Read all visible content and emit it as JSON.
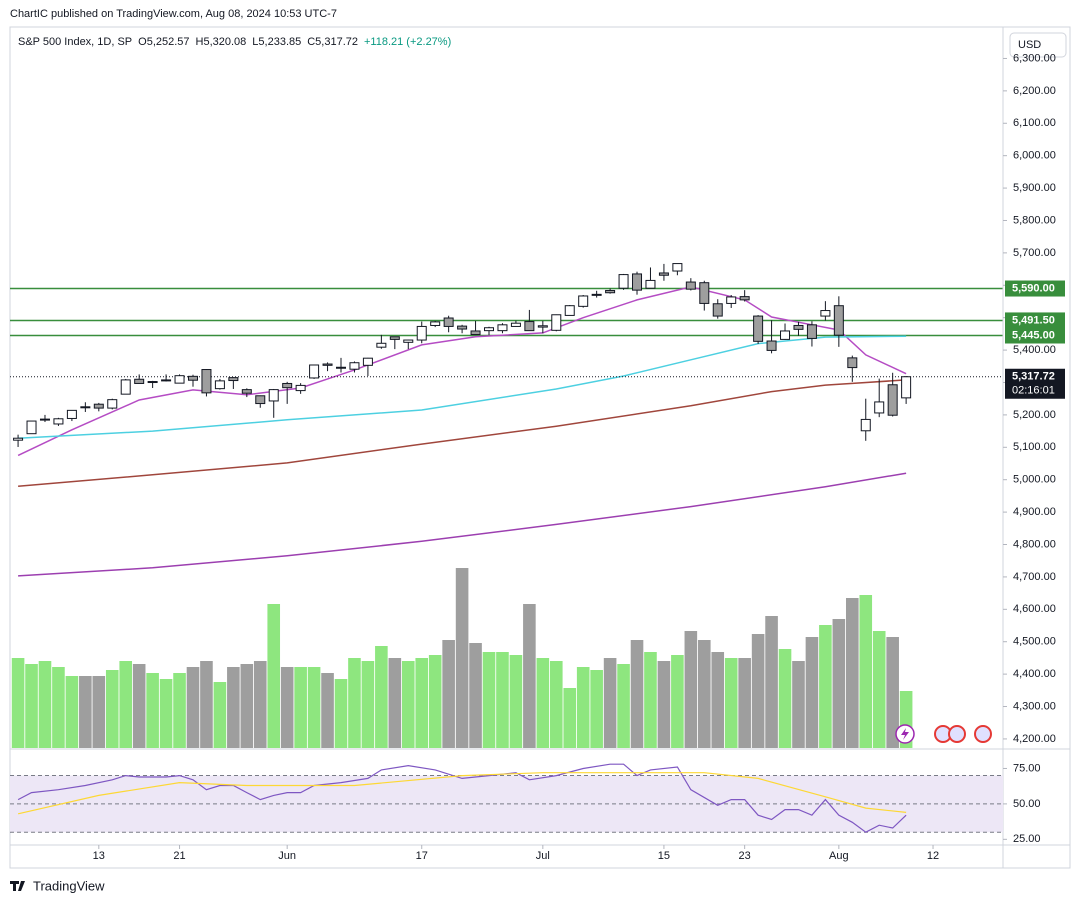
{
  "header": {
    "publisher": "ChartIC published on TradingView.com, Aug 08, 2024 10:53 UTC-7"
  },
  "footer": {
    "brand": "TradingView"
  },
  "chart_data": {
    "type": "candlestick",
    "title": "S&P 500 Index, 1D, SP",
    "legend_values": [
      "O5,252.57",
      "H5,320.08",
      "L5,233.85",
      "C5,317.72",
      "+118.21 (+2.27%)"
    ],
    "currency": "USD",
    "open": [
      5122,
      5142,
      5187,
      5172,
      5189,
      5225,
      5233,
      5221,
      5264,
      5310,
      5303,
      5305,
      5298,
      5319,
      5340,
      5281,
      5315,
      5278,
      5259,
      5243,
      5297,
      5275,
      5314,
      5357,
      5344,
      5341,
      5353,
      5409,
      5441,
      5424,
      5431,
      5476,
      5499,
      5474,
      5459,
      5460,
      5460,
      5473,
      5488,
      5471,
      5461,
      5507,
      5535,
      5572,
      5584,
      5591,
      5635,
      5591,
      5638,
      5644,
      5610,
      5608,
      5543,
      5544,
      5565,
      5505,
      5428,
      5433,
      5476,
      5478,
      5505,
      5537,
      5376,
      5151,
      5206,
      5293,
      5252.57
    ],
    "high": [
      5139,
      5181,
      5200,
      5191,
      5215,
      5239,
      5237,
      5250,
      5311,
      5325,
      5305,
      5325,
      5325,
      5324,
      5341,
      5311,
      5316,
      5282,
      5260,
      5280,
      5302,
      5298,
      5354,
      5362,
      5376,
      5365,
      5376,
      5447,
      5441,
      5432,
      5488,
      5490,
      5506,
      5478,
      5490,
      5472,
      5483,
      5491,
      5524,
      5490,
      5510,
      5539,
      5570,
      5583,
      5590,
      5635,
      5642,
      5655,
      5666,
      5667,
      5622,
      5614,
      5557,
      5570,
      5585,
      5508,
      5492,
      5482,
      5487,
      5489,
      5551,
      5566,
      5383,
      5250,
      5312,
      5330,
      5320.08
    ],
    "low": [
      5101,
      5142,
      5178,
      5166,
      5181,
      5209,
      5211,
      5217,
      5263,
      5297,
      5283,
      5303,
      5297,
      5287,
      5257,
      5278,
      5280,
      5255,
      5222,
      5191,
      5234,
      5265,
      5311,
      5335,
      5331,
      5331,
      5320,
      5404,
      5403,
      5403,
      5421,
      5471,
      5455,
      5452,
      5448,
      5446,
      5452,
      5473,
      5460,
      5452,
      5458,
      5507,
      5531,
      5562,
      5574,
      5586,
      5571,
      5590,
      5614,
      5631,
      5584,
      5522,
      5497,
      5530,
      5550,
      5419,
      5390,
      5432,
      5444,
      5411,
      5491,
      5410,
      5302,
      5120,
      5193,
      5195,
      5233.85
    ],
    "close": [
      5128,
      5181,
      5187,
      5188,
      5214,
      5223,
      5221,
      5247,
      5308,
      5297,
      5303,
      5308,
      5321,
      5307,
      5268,
      5305,
      5306,
      5267,
      5235,
      5278,
      5284,
      5291,
      5354,
      5353,
      5347,
      5361,
      5375,
      5421,
      5433,
      5431,
      5473,
      5487,
      5473,
      5465,
      5448,
      5469,
      5478,
      5483,
      5460,
      5475,
      5509,
      5537,
      5567,
      5572,
      5577,
      5633,
      5585,
      5615,
      5631,
      5667,
      5588,
      5544,
      5505,
      5564,
      5555,
      5427,
      5399,
      5459,
      5464,
      5436,
      5522,
      5446,
      5346,
      5186,
      5240,
      5199,
      5317.72
    ],
    "up_color": "#ffffff",
    "down_color": "#9e9e9e",
    "xlim": [
      -0.6,
      73.2
    ],
    "xticks": [
      {
        "value": 6,
        "label": "13"
      },
      {
        "value": 12,
        "label": "21"
      },
      {
        "value": 20,
        "label": "Jun"
      },
      {
        "value": 30,
        "label": "17"
      },
      {
        "value": 39,
        "label": "Jul"
      },
      {
        "value": 48,
        "label": "15"
      },
      {
        "value": 54,
        "label": "23"
      },
      {
        "value": 61,
        "label": "Aug"
      },
      {
        "value": 68,
        "label": "12"
      }
    ],
    "ylim": [
      4172,
      6394
    ],
    "yticks": [
      {
        "value": 4200,
        "label": "4,200.00"
      },
      {
        "value": 4300,
        "label": "4,300.00"
      },
      {
        "value": 4400,
        "label": "4,400.00"
      },
      {
        "value": 4500,
        "label": "4,500.00"
      },
      {
        "value": 4600,
        "label": "4,600.00"
      },
      {
        "value": 4700,
        "label": "4,700.00"
      },
      {
        "value": 4800,
        "label": "4,800.00"
      },
      {
        "value": 4900,
        "label": "4,900.00"
      },
      {
        "value": 5000,
        "label": "5,000.00"
      },
      {
        "value": 5100,
        "label": "5,100.00"
      },
      {
        "value": 5200,
        "label": "5,200.00"
      },
      {
        "value": 5300,
        "label": "5,300.00"
      },
      {
        "value": 5400,
        "label": "5,400.00"
      },
      {
        "value": 5500,
        "label": "5,500.00"
      },
      {
        "value": 5600,
        "label": "5,600.00"
      },
      {
        "value": 5700,
        "label": "5,700.00"
      },
      {
        "value": 5800,
        "label": "5,800.00"
      },
      {
        "value": 5900,
        "label": "5,900.00"
      },
      {
        "value": 6000,
        "label": "6,000.00"
      },
      {
        "value": 6100,
        "label": "6,100.00"
      },
      {
        "value": 6200,
        "label": "6,200.00"
      },
      {
        "value": 6300,
        "label": "6,300.00"
      }
    ],
    "last_price": {
      "value": 5317.72,
      "label": "5,317.72",
      "countdown": "02:16:01"
    },
    "level_color": "#388e3c",
    "levels": [
      {
        "value": 5590,
        "label": "5,590.00"
      },
      {
        "value": 5491.5,
        "label": "5,491.50"
      },
      {
        "value": 5445,
        "label": "5,445.00"
      }
    ],
    "moving_averages": [
      {
        "color": "#b54cc4",
        "x": [
          0,
          4,
          9,
          13,
          17,
          21,
          25,
          30,
          34,
          39,
          42,
          46,
          50,
          54,
          56,
          59,
          61,
          63,
          66
        ],
        "values": [
          5075,
          5154,
          5246,
          5277,
          5262,
          5283,
          5339,
          5416,
          5441,
          5453,
          5500,
          5555,
          5595,
          5555,
          5502,
          5478,
          5462,
          5385,
          5327
        ]
      },
      {
        "color": "#4dd0e1",
        "x": [
          0,
          10,
          20,
          30,
          40,
          45,
          50,
          55,
          60,
          66
        ],
        "values": [
          5128,
          5150,
          5185,
          5215,
          5280,
          5320,
          5370,
          5420,
          5440,
          5443
        ]
      },
      {
        "color": "#a0463c",
        "x": [
          0,
          10,
          20,
          30,
          40,
          50,
          56,
          60,
          66
        ],
        "values": [
          4980,
          5015,
          5052,
          5110,
          5165,
          5228,
          5272,
          5292,
          5308
        ]
      },
      {
        "color": "#9c3fb0",
        "x": [
          0,
          10,
          20,
          30,
          40,
          50,
          60,
          66
        ],
        "values": [
          4703,
          4728,
          4765,
          4810,
          4862,
          4917,
          4978,
          5020
        ]
      }
    ],
    "volume": {
      "ylim": [
        0,
        24
      ],
      "up_color": "#8ee67f",
      "down_color": "#9e9e9e",
      "values": [
        3.0,
        2.8,
        2.9,
        2.7,
        2.4,
        2.4,
        2.4,
        2.6,
        2.9,
        2.8,
        2.5,
        2.3,
        2.5,
        2.7,
        2.9,
        2.2,
        2.7,
        2.8,
        2.9,
        4.8,
        2.7,
        2.7,
        2.7,
        2.5,
        2.3,
        3.0,
        2.9,
        3.4,
        3.0,
        2.9,
        3.0,
        3.1,
        3.6,
        6.0,
        3.5,
        3.2,
        3.2,
        3.1,
        4.8,
        3.0,
        2.9,
        2.0,
        2.7,
        2.6,
        3.0,
        2.8,
        3.6,
        3.2,
        2.9,
        3.1,
        3.9,
        3.6,
        3.2,
        3.0,
        3.0,
        3.8,
        4.4,
        3.3,
        2.9,
        3.7,
        4.1,
        4.3,
        5.0,
        5.1,
        3.9,
        3.7,
        1.9
      ]
    },
    "rsi": {
      "ylim": [
        21,
        84.5
      ],
      "yticks": [
        {
          "value": 75,
          "label": "75.00"
        },
        {
          "value": 50,
          "label": "50.00"
        },
        {
          "value": 25,
          "label": "25.00"
        }
      ],
      "levels": [
        70,
        50,
        30
      ],
      "band_color": "#ede7f6",
      "series": [
        {
          "color": "#7e57c2",
          "x": [
            0,
            1,
            3,
            5,
            7,
            8,
            9,
            11,
            12,
            13,
            14,
            15,
            16,
            17,
            18,
            19,
            20,
            21,
            22,
            24,
            26,
            27,
            29,
            31,
            33,
            35,
            37,
            38,
            40,
            42,
            44,
            45,
            46,
            47,
            49,
            50,
            52,
            53,
            54,
            55,
            56,
            57,
            58,
            59,
            60,
            61,
            62,
            63,
            64,
            65,
            66
          ],
          "values": [
            53,
            58,
            60,
            63,
            67,
            70,
            69,
            69,
            70,
            67,
            60,
            63,
            63,
            58,
            53,
            56,
            58,
            58,
            63,
            65,
            68,
            74,
            77,
            74,
            68,
            70,
            72,
            67,
            70,
            75,
            78,
            78,
            70,
            74,
            76,
            60,
            49,
            53,
            53,
            42,
            39,
            46,
            46,
            42,
            53,
            42,
            37,
            30,
            35,
            33,
            42
          ]
        },
        {
          "color": "#fdd835",
          "x": [
            0,
            6,
            12,
            17,
            25,
            33,
            39,
            46,
            51,
            55,
            60,
            63,
            66
          ],
          "values": [
            43,
            56,
            65,
            63,
            63,
            70,
            72,
            72,
            72,
            68,
            55,
            47,
            44
          ]
        }
      ]
    }
  }
}
